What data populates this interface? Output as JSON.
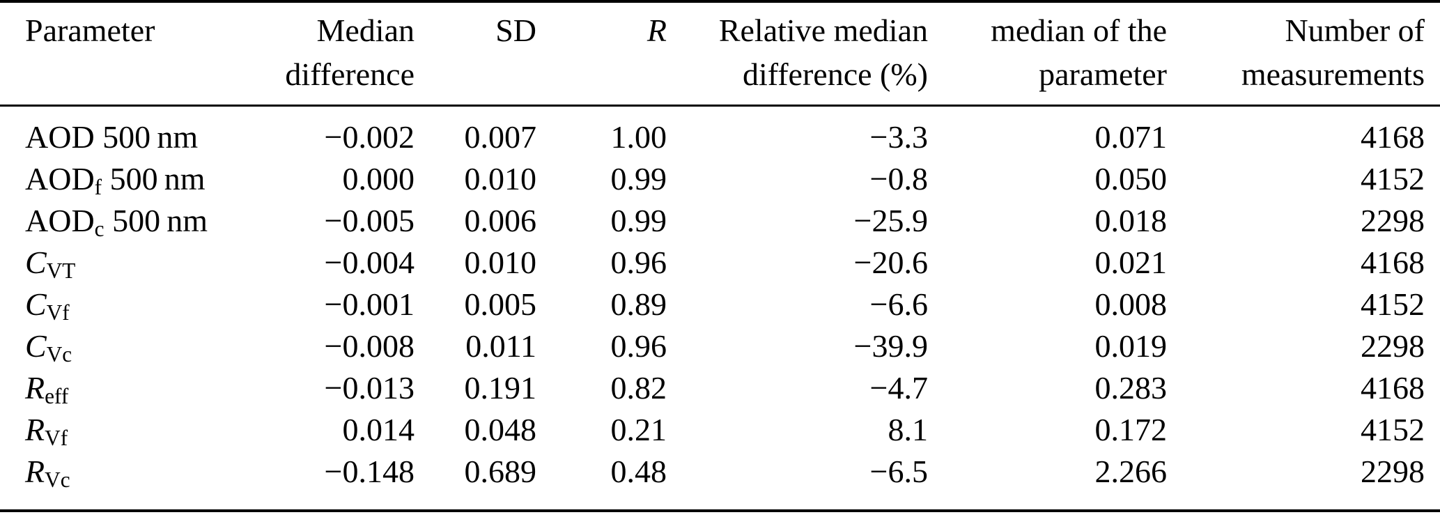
{
  "page": {
    "background_color": "#ffffff",
    "text_color": "#000000"
  },
  "table": {
    "header": {
      "columns": [
        {
          "id": "parameter",
          "lines": [
            "Parameter",
            ""
          ],
          "align": "left",
          "italic": false
        },
        {
          "id": "median_difference",
          "lines": [
            "Median",
            "difference"
          ],
          "align": "right",
          "italic": false
        },
        {
          "id": "sd",
          "lines": [
            "SD",
            ""
          ],
          "align": "right",
          "italic": false
        },
        {
          "id": "r",
          "lines": [
            "R",
            ""
          ],
          "align": "right",
          "italic": true
        },
        {
          "id": "relative_median_difference",
          "lines": [
            "Relative median",
            "difference (%)"
          ],
          "align": "right",
          "italic": false
        },
        {
          "id": "median_of_parameter",
          "lines": [
            "median of the",
            "parameter"
          ],
          "align": "right",
          "italic": false
        },
        {
          "id": "number_of_measurements",
          "lines": [
            "Number of",
            "measurements"
          ],
          "align": "right",
          "italic": false
        }
      ]
    },
    "rows": [
      {
        "parameter": [
          {
            "text": "AOD 500 nm"
          }
        ],
        "values": [
          "−0.002",
          "0.007",
          "1.00",
          "−3.3",
          "0.071",
          "4168"
        ]
      },
      {
        "parameter": [
          {
            "text": "AOD"
          },
          {
            "text": "f",
            "sub": true
          },
          {
            "text": " 500 nm"
          }
        ],
        "values": [
          "0.000",
          "0.010",
          "0.99",
          "−0.8",
          "0.050",
          "4152"
        ]
      },
      {
        "parameter": [
          {
            "text": "AOD"
          },
          {
            "text": "c",
            "sub": true
          },
          {
            "text": " 500 nm"
          }
        ],
        "values": [
          "−0.005",
          "0.006",
          "0.99",
          "−25.9",
          "0.018",
          "2298"
        ]
      },
      {
        "parameter": [
          {
            "text": "C",
            "italic": true
          },
          {
            "text": "VT",
            "sub": true
          }
        ],
        "values": [
          "−0.004",
          "0.010",
          "0.96",
          "−20.6",
          "0.021",
          "4168"
        ]
      },
      {
        "parameter": [
          {
            "text": "C",
            "italic": true
          },
          {
            "text": "Vf",
            "sub": true
          }
        ],
        "values": [
          "−0.001",
          "0.005",
          "0.89",
          "−6.6",
          "0.008",
          "4152"
        ]
      },
      {
        "parameter": [
          {
            "text": "C",
            "italic": true
          },
          {
            "text": "Vc",
            "sub": true
          }
        ],
        "values": [
          "−0.008",
          "0.011",
          "0.96",
          "−39.9",
          "0.019",
          "2298"
        ]
      },
      {
        "parameter": [
          {
            "text": "R",
            "italic": true
          },
          {
            "text": "eff",
            "sub": true
          }
        ],
        "values": [
          "−0.013",
          "0.191",
          "0.82",
          "−4.7",
          "0.283",
          "4168"
        ]
      },
      {
        "parameter": [
          {
            "text": "R",
            "italic": true
          },
          {
            "text": "Vf",
            "sub": true
          }
        ],
        "values": [
          "0.014",
          "0.048",
          "0.21",
          "8.1",
          "0.172",
          "4152"
        ]
      },
      {
        "parameter": [
          {
            "text": "R",
            "italic": true
          },
          {
            "text": "Vc",
            "sub": true
          }
        ],
        "values": [
          "−0.148",
          "0.689",
          "0.48",
          "−6.5",
          "2.266",
          "2298"
        ]
      }
    ]
  }
}
